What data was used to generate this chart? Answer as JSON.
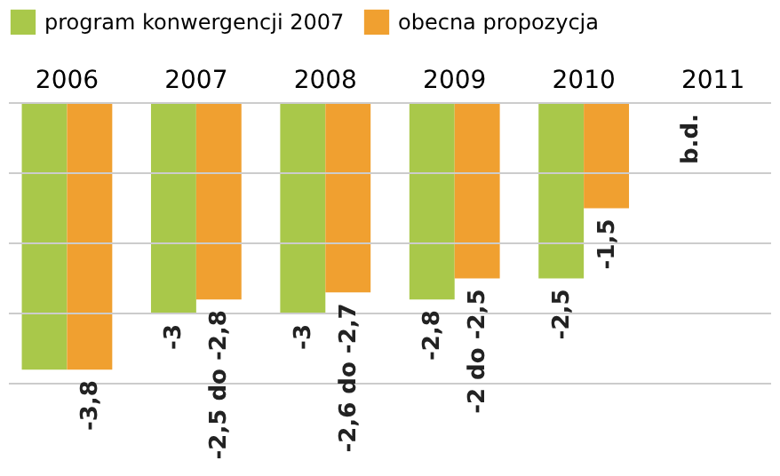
{
  "chart_data": {
    "type": "bar",
    "categories": [
      "2006",
      "2007",
      "2008",
      "2009",
      "2010",
      "2011"
    ],
    "series": [
      {
        "name": "program konwergencji 2007",
        "color": "#a9c84a",
        "values": [
          -3.8,
          -3,
          -3,
          -2.8,
          -2.5,
          null
        ],
        "value_labels": [
          null,
          "-3",
          "-3",
          "-2,8",
          "-2,5",
          "b.d."
        ]
      },
      {
        "name": "obecna propozycja",
        "color": "#f0a030",
        "values": [
          -3.8,
          -2.8,
          -2.7,
          -2.5,
          -1.5,
          null
        ],
        "value_labels": [
          "-3,8",
          "-2,5 do -2,8",
          "-2,6 do -2,7",
          "-2 do -2,5",
          "-1,5",
          null
        ]
      }
    ],
    "ylim": [
      -4,
      0
    ],
    "yticks": [
      {
        "value": 0,
        "label": null
      },
      {
        "value": -1,
        "label": null
      },
      {
        "value": -2,
        "label": null
      },
      {
        "value": -3,
        "label": null
      },
      {
        "value": -4,
        "label": null
      }
    ],
    "grid": "y",
    "legend": "top",
    "tick_labels": "x"
  }
}
